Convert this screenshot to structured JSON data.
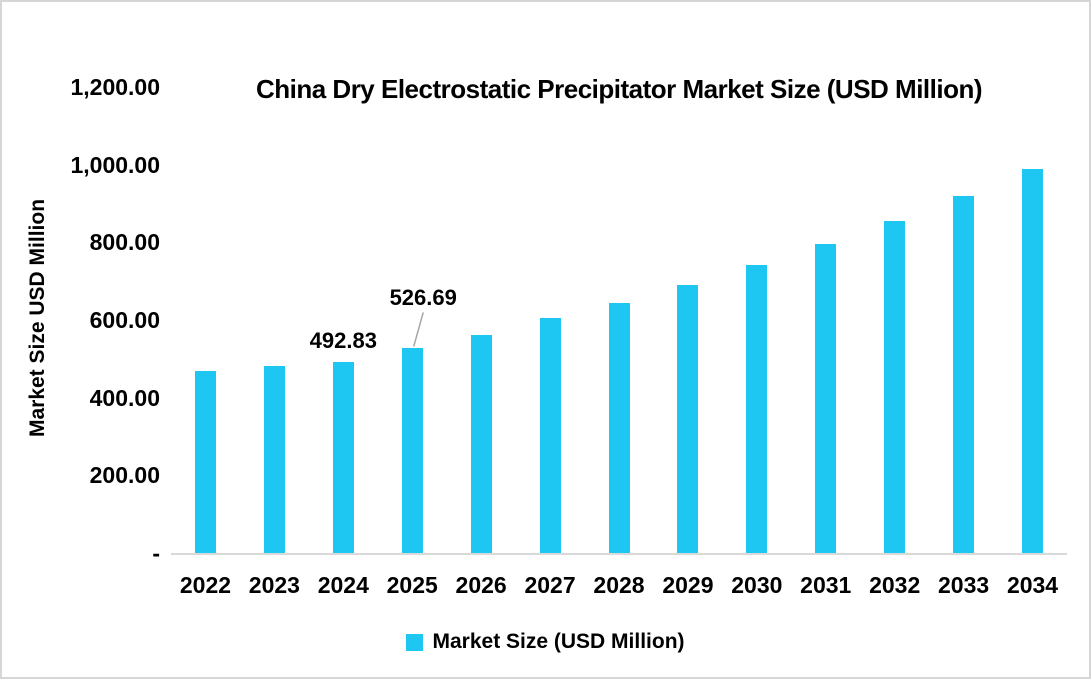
{
  "chart": {
    "title": "China Dry Electrostatic Precipitator Market Size (USD Million)",
    "y_axis_title": "Market Size USD Million",
    "legend": {
      "label": "Market Size (USD Million)"
    },
    "colors": {
      "bar": "#1ec7f2",
      "axis_line": "#d9d9d9",
      "callout_line": "#a6a6a6",
      "text": "#000000",
      "border": "#d6d6d6"
    }
  },
  "chart_data": {
    "type": "bar",
    "title": "China Dry Electrostatic Precipitator Market Size (USD Million)",
    "xlabel": "",
    "ylabel": "Market Size USD Million",
    "ylim": [
      0,
      1200
    ],
    "grid": false,
    "legend_position": "bottom",
    "series_name": "Market Size (USD Million)",
    "categories": [
      "2022",
      "2023",
      "2024",
      "2025",
      "2026",
      "2027",
      "2028",
      "2029",
      "2030",
      "2031",
      "2032",
      "2033",
      "2034"
    ],
    "values": [
      469,
      481,
      492.83,
      526.69,
      562,
      604,
      643,
      690,
      742,
      796,
      856,
      920,
      988
    ],
    "y_ticks": [
      {
        "label": "1,200.00",
        "value": 1200
      },
      {
        "label": "1,000.00",
        "value": 1000
      },
      {
        "label": "800.00",
        "value": 800
      },
      {
        "label": "600.00",
        "value": 600
      },
      {
        "label": "400.00",
        "value": 400
      },
      {
        "label": "200.00",
        "value": 200
      },
      {
        "label": "-",
        "value": 0
      }
    ],
    "data_labels": [
      {
        "category": "2024",
        "text": "492.83",
        "callout": false
      },
      {
        "category": "2025",
        "text": "526.69",
        "callout": true
      }
    ]
  }
}
